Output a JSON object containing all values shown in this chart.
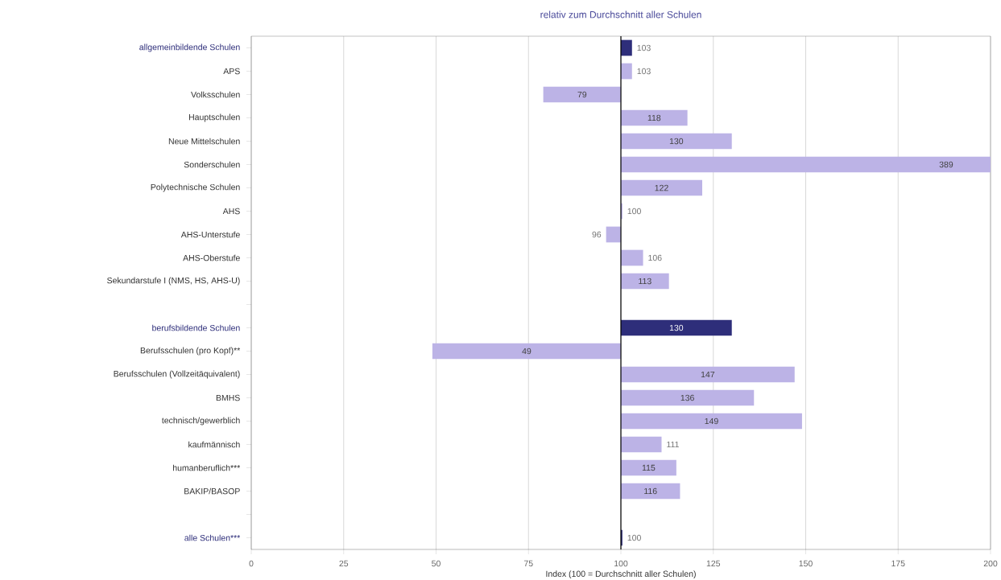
{
  "chart_data": {
    "type": "bar",
    "orientation": "horizontal",
    "title": "relativ zum Durchschnitt aller Schulen",
    "xlabel": "Index (100 = Durchschnitt aller Schulen)",
    "categories": [
      "allgemeinbildende Schulen",
      "APS",
      "Volksschulen",
      "Hauptschulen",
      "Neue Mittelschulen",
      "Sonderschulen",
      "Polytechnische Schulen",
      "AHS",
      "AHS-Unterstufe",
      "AHS-Oberstufe",
      "Sekundarstufe I (NMS, HS, AHS-U)",
      null,
      "berufsbildende Schulen",
      "Berufsschulen (pro Kopf)**",
      "Berufsschulen (Vollzeitäquivalent)",
      "BMHS",
      "technisch/gewerblich",
      "kaufmännisch",
      "humanberuflich***",
      "BAKIP/BASOP",
      null,
      "alle Schulen***"
    ],
    "base": [
      100,
      100,
      100,
      100,
      100,
      100,
      100,
      100,
      100,
      100,
      100,
      null,
      100,
      100,
      100,
      100,
      100,
      100,
      100,
      100,
      null,
      100
    ],
    "values": [
      3,
      3,
      -21,
      18,
      30,
      289,
      22,
      0.4,
      -4,
      6,
      13,
      null,
      30,
      -51,
      47,
      36,
      49,
      11,
      15,
      16,
      null,
      0.4
    ],
    "value_labels": [
      "103",
      "103",
      "79",
      "118",
      "130",
      "389",
      "122",
      "100",
      "96",
      "106",
      "113",
      null,
      "130",
      "49",
      "147",
      "136",
      "149",
      "111",
      "115",
      "116",
      null,
      "100"
    ],
    "colors": [
      "#2e2e7a",
      "#bcb3e6",
      "#bcb3e6",
      "#bcb3e6",
      "#bcb3e6",
      "#bcb3e6",
      "#bcb3e6",
      "#bcb3e6",
      "#bcb3e6",
      "#bcb3e6",
      "#bcb3e6",
      null,
      "#2e2e7a",
      "#bcb3e6",
      "#bcb3e6",
      "#bcb3e6",
      "#bcb3e6",
      "#bcb3e6",
      "#bcb3e6",
      "#bcb3e6",
      null,
      "#2e2e7a"
    ],
    "xlim": [
      0,
      200
    ],
    "xticks": [
      0,
      25,
      50,
      75,
      100,
      125,
      150,
      175,
      200
    ],
    "ref_lines": [
      {
        "axis": "x",
        "value": 100,
        "color": "#000000"
      }
    ],
    "grid": "x"
  }
}
